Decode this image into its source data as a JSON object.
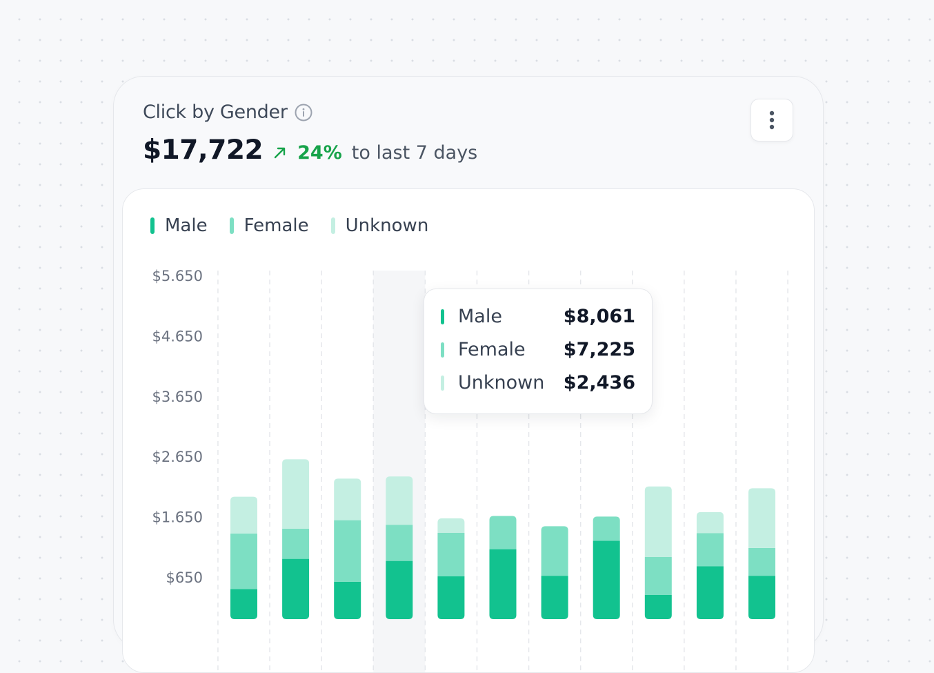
{
  "card": {
    "title": "Click by Gender",
    "total": "$17,722",
    "trend_pct": "24%",
    "trend_text": "to last 7 days"
  },
  "colors": {
    "male": "#12c28f",
    "female": "#7ddfc3",
    "unknown": "#c4efe2",
    "trend_up": "#17a34a"
  },
  "icons": {
    "info": "info-icon",
    "trend": "arrow-up-right-icon",
    "menu": "more-vertical-icon"
  },
  "tooltip": {
    "rows": [
      {
        "label": "Male",
        "value": "$8,061"
      },
      {
        "label": "Female",
        "value": "$7,225"
      },
      {
        "label": "Unknown",
        "value": "$2,436"
      }
    ]
  },
  "chart_data": {
    "type": "bar",
    "stacked": true,
    "series": [
      {
        "name": "Male",
        "values": [
          500,
          1000,
          620,
          965,
          710,
          1160,
          720,
          1300,
          400,
          875,
          720
        ]
      },
      {
        "name": "Female",
        "values": [
          920,
          500,
          1020,
          600,
          720,
          550,
          820,
          400,
          630,
          550,
          460
        ]
      },
      {
        "name": "Unknown",
        "values": [
          610,
          1150,
          690,
          800,
          240,
          0,
          0,
          0,
          1170,
          350,
          990
        ]
      }
    ],
    "yticks": [
      "$5.650",
      "$4.650",
      "$3.650",
      "$2.650",
      "$1.650",
      "$650"
    ],
    "ytick_values": [
      5650,
      4650,
      3650,
      2650,
      1650,
      650
    ],
    "highlighted_index": 3,
    "grid": "vertical-dashed",
    "legend_position": "top-left"
  }
}
